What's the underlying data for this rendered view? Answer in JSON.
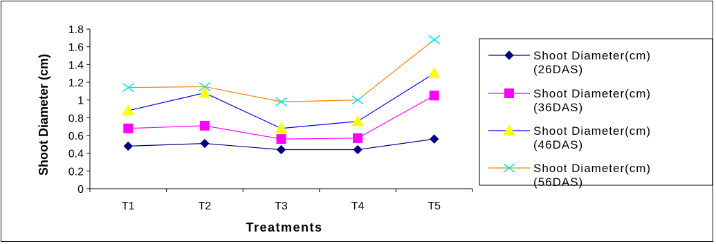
{
  "chart_data": {
    "type": "line",
    "categories": [
      "T1",
      "T2",
      "T3",
      "T4",
      "T5"
    ],
    "xlabel": "Treatments",
    "ylabel": "Shoot Diameter (cm)",
    "ylim": [
      0,
      1.8
    ],
    "yticks": [
      0,
      0.2,
      0.4,
      0.6,
      0.8,
      1,
      1.2,
      1.4,
      1.6,
      1.8
    ],
    "ytick_labels": [
      "0",
      "0.2",
      "0.4",
      "0.6",
      "0.8",
      "1",
      "1.2",
      "1.4",
      "1.6",
      "1.8"
    ],
    "grid": false,
    "legend_position": "right",
    "series": [
      {
        "name": "Shoot Diameter(cm) (26DAS)",
        "legend_lines": [
          "Shoot Diameter(cm)",
          "(26DAS)"
        ],
        "values": [
          0.48,
          0.51,
          0.44,
          0.44,
          0.56
        ],
        "color": "#000080",
        "marker_color": "#000080",
        "marker": "diamond"
      },
      {
        "name": "Shoot Diameter(cm) (36DAS)",
        "legend_lines": [
          "Shoot Diameter(cm)",
          "(36DAS)"
        ],
        "values": [
          0.68,
          0.71,
          0.56,
          0.57,
          1.05
        ],
        "color": "#ff00ff",
        "marker_color": "#ff00ff",
        "marker": "square"
      },
      {
        "name": "Shoot Diameter(cm) (46DAS)",
        "legend_lines": [
          "Shoot Diameter(cm)",
          "(46DAS)"
        ],
        "values": [
          0.88,
          1.08,
          0.68,
          0.76,
          1.3
        ],
        "color": "#0000ff",
        "marker_color": "#ffff00",
        "marker": "triangle"
      },
      {
        "name": "Shoot Diameter(cm) (56DAS)",
        "legend_lines": [
          "Shoot Diameter(cm)",
          "(56DAS)"
        ],
        "values": [
          1.14,
          1.15,
          0.98,
          1.0,
          1.68
        ],
        "color": "#ff8000",
        "marker_color": "#00e5e5",
        "marker": "x"
      }
    ]
  }
}
